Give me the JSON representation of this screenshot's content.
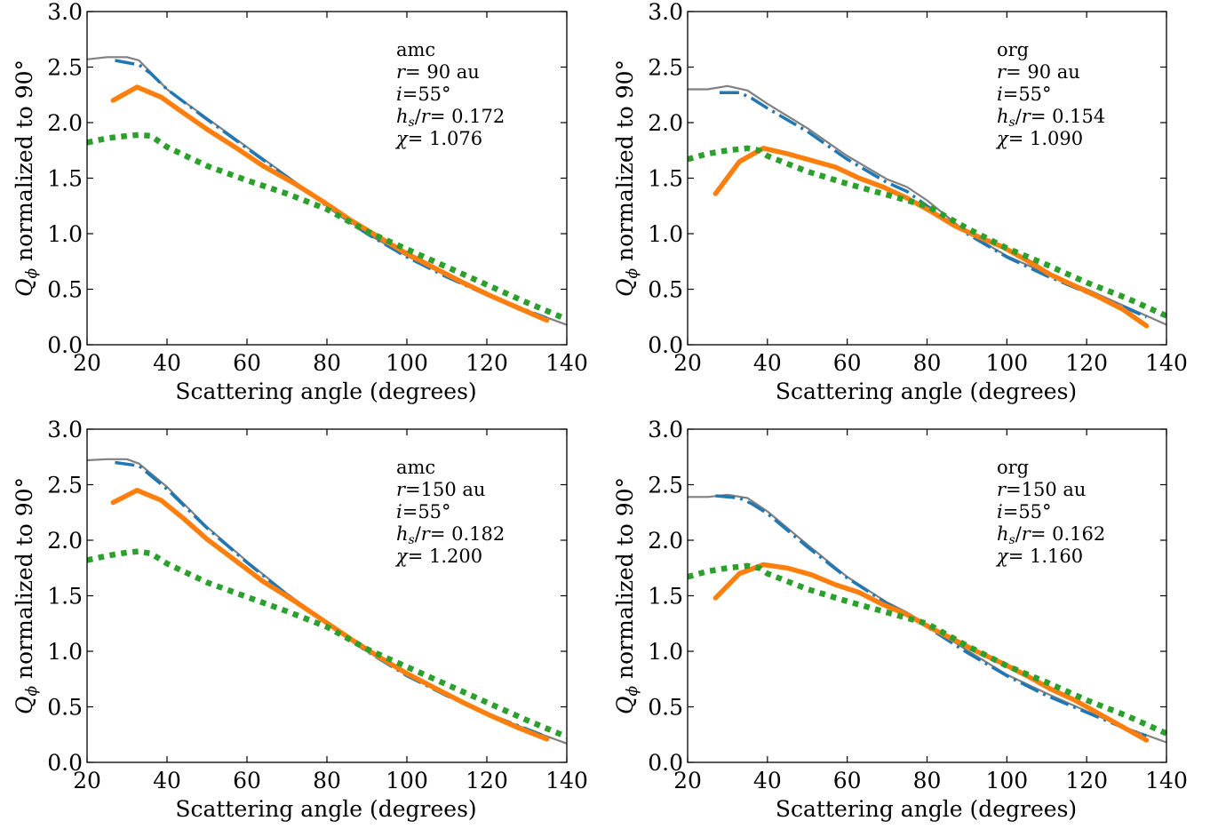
{
  "figure": {
    "xlabel": "Scattering angle (degrees)",
    "ylabel_symbol": "Q",
    "ylabel_subscript": "ϕ",
    "ylabel_rest": " normalized to 90°",
    "colors": {
      "gray": "#808080",
      "blue": "#1f77b4",
      "orange": "#ff7f0e",
      "green": "#2ca02c"
    }
  },
  "chart_data": [
    {
      "type": "line",
      "xlim": [
        20,
        140
      ],
      "ylim": [
        0,
        3
      ],
      "xticks": [
        "20",
        "40",
        "60",
        "80",
        "100",
        "120",
        "140"
      ],
      "yticks": [
        "0.0",
        "0.5",
        "1.0",
        "1.5",
        "2.0",
        "2.5",
        "3.0"
      ],
      "annotation": {
        "composition": "amc",
        "r_value": "90",
        "r_unit": "au",
        "i_value": "55°",
        "hs_value": "0.172",
        "chi_value": "1.076"
      },
      "series": [
        {
          "color": "gray",
          "style": "solid",
          "x": [
            20,
            25,
            30,
            33,
            36,
            40,
            50,
            60,
            70,
            80,
            90,
            100,
            110,
            120,
            130,
            140
          ],
          "y": [
            2.57,
            2.59,
            2.59,
            2.56,
            2.45,
            2.3,
            2.04,
            1.78,
            1.52,
            1.26,
            1.0,
            0.8,
            0.62,
            0.46,
            0.31,
            0.18
          ]
        },
        {
          "color": "blue",
          "style": "dashdot",
          "x": [
            27,
            33,
            36,
            40,
            50,
            60,
            70,
            80,
            90,
            100,
            110,
            120,
            130,
            135
          ],
          "y": [
            2.56,
            2.52,
            2.44,
            2.3,
            2.03,
            1.77,
            1.51,
            1.25,
            1.0,
            0.79,
            0.61,
            0.45,
            0.31,
            0.24
          ]
        },
        {
          "color": "orange",
          "style": "solid",
          "x": [
            26.5,
            32.5,
            38.5,
            44,
            50,
            57,
            64,
            72,
            79,
            86,
            93,
            100,
            107,
            114,
            121,
            128,
            135
          ],
          "y": [
            2.2,
            2.32,
            2.23,
            2.09,
            1.94,
            1.78,
            1.61,
            1.45,
            1.29,
            1.12,
            0.97,
            0.82,
            0.69,
            0.56,
            0.44,
            0.33,
            0.22
          ]
        },
        {
          "color": "green",
          "style": "dotted",
          "x": [
            20,
            25,
            30,
            33,
            36,
            40,
            50,
            60,
            70,
            80,
            90,
            100,
            110,
            120,
            130,
            140
          ],
          "y": [
            1.82,
            1.86,
            1.88,
            1.89,
            1.88,
            1.78,
            1.61,
            1.48,
            1.36,
            1.22,
            1.02,
            0.86,
            0.7,
            0.54,
            0.38,
            0.23
          ]
        }
      ]
    },
    {
      "type": "line",
      "xlim": [
        20,
        140
      ],
      "ylim": [
        0,
        3
      ],
      "xticks": [
        "20",
        "40",
        "60",
        "80",
        "100",
        "120",
        "140"
      ],
      "yticks": [
        "0.0",
        "0.5",
        "1.0",
        "1.5",
        "2.0",
        "2.5",
        "3.0"
      ],
      "annotation": {
        "composition": "org",
        "r_value": "90",
        "r_unit": "au",
        "i_value": "55°",
        "hs_value": "0.154",
        "chi_value": "1.090"
      },
      "series": [
        {
          "color": "gray",
          "style": "solid",
          "x": [
            20,
            25,
            30,
            35,
            40,
            50,
            60,
            70,
            75,
            80,
            90,
            100,
            110,
            120,
            130,
            140
          ],
          "y": [
            2.3,
            2.3,
            2.33,
            2.29,
            2.17,
            1.95,
            1.7,
            1.49,
            1.42,
            1.3,
            1.01,
            0.8,
            0.64,
            0.5,
            0.34,
            0.18
          ]
        },
        {
          "color": "blue",
          "style": "dashdot",
          "x": [
            28,
            33,
            36,
            40,
            50,
            60,
            70,
            75,
            80,
            90,
            100,
            110,
            120,
            130,
            135
          ],
          "y": [
            2.27,
            2.27,
            2.22,
            2.13,
            1.92,
            1.67,
            1.46,
            1.38,
            1.25,
            1.0,
            0.79,
            0.62,
            0.47,
            0.33,
            0.25
          ]
        },
        {
          "color": "orange",
          "style": "solid",
          "x": [
            27,
            33,
            39,
            45,
            51,
            57,
            63,
            69,
            75,
            81,
            87,
            93,
            99,
            105,
            111,
            117,
            123,
            129,
            135
          ],
          "y": [
            1.36,
            1.65,
            1.77,
            1.72,
            1.66,
            1.6,
            1.5,
            1.42,
            1.32,
            1.2,
            1.07,
            0.97,
            0.88,
            0.76,
            0.63,
            0.53,
            0.43,
            0.32,
            0.17
          ]
        },
        {
          "color": "green",
          "style": "dotted",
          "x": [
            20,
            25,
            30,
            35,
            38,
            40,
            50,
            60,
            70,
            80,
            90,
            100,
            110,
            120,
            130,
            140
          ],
          "y": [
            1.67,
            1.72,
            1.75,
            1.77,
            1.75,
            1.7,
            1.56,
            1.45,
            1.35,
            1.25,
            1.05,
            0.87,
            0.72,
            0.56,
            0.42,
            0.26
          ]
        }
      ]
    },
    {
      "type": "line",
      "xlim": [
        20,
        140
      ],
      "ylim": [
        0,
        3
      ],
      "xticks": [
        "20",
        "40",
        "60",
        "80",
        "100",
        "120",
        "140"
      ],
      "yticks": [
        "0.0",
        "0.5",
        "1.0",
        "1.5",
        "2.0",
        "2.5",
        "3.0"
      ],
      "annotation": {
        "composition": "amc",
        "r_value": "150",
        "r_unit": "au",
        "i_value": "55°",
        "hs_value": "0.182",
        "chi_value": "1.200"
      },
      "series": [
        {
          "color": "gray",
          "style": "solid",
          "x": [
            20,
            25,
            30,
            33,
            36,
            40,
            50,
            60,
            70,
            80,
            90,
            100,
            110,
            120,
            130,
            140
          ],
          "y": [
            2.72,
            2.73,
            2.73,
            2.69,
            2.6,
            2.48,
            2.12,
            1.81,
            1.52,
            1.26,
            1.0,
            0.79,
            0.6,
            0.44,
            0.3,
            0.17
          ]
        },
        {
          "color": "blue",
          "style": "dashdot",
          "x": [
            27,
            33,
            36,
            40,
            50,
            60,
            70,
            80,
            90,
            100,
            110,
            120,
            130,
            135
          ],
          "y": [
            2.7,
            2.67,
            2.58,
            2.46,
            2.11,
            1.8,
            1.51,
            1.25,
            1.0,
            0.78,
            0.6,
            0.44,
            0.3,
            0.23
          ]
        },
        {
          "color": "orange",
          "style": "solid",
          "x": [
            26.5,
            32.5,
            38.5,
            44,
            50,
            57,
            64,
            72,
            79,
            86,
            93,
            100,
            107,
            114,
            121,
            128,
            135
          ],
          "y": [
            2.34,
            2.45,
            2.36,
            2.2,
            2.01,
            1.82,
            1.63,
            1.45,
            1.28,
            1.11,
            0.95,
            0.8,
            0.67,
            0.54,
            0.42,
            0.31,
            0.21
          ]
        },
        {
          "color": "green",
          "style": "dotted",
          "x": [
            20,
            25,
            30,
            33,
            36,
            40,
            50,
            60,
            70,
            80,
            90,
            100,
            110,
            120,
            130,
            140
          ],
          "y": [
            1.82,
            1.86,
            1.89,
            1.9,
            1.88,
            1.79,
            1.62,
            1.49,
            1.36,
            1.22,
            1.02,
            0.86,
            0.7,
            0.54,
            0.38,
            0.23
          ]
        }
      ]
    },
    {
      "type": "line",
      "xlim": [
        20,
        140
      ],
      "ylim": [
        0,
        3
      ],
      "xticks": [
        "20",
        "40",
        "60",
        "80",
        "100",
        "120",
        "140"
      ],
      "yticks": [
        "0.0",
        "0.5",
        "1.0",
        "1.5",
        "2.0",
        "2.5",
        "3.0"
      ],
      "annotation": {
        "composition": "org",
        "r_value": "150",
        "r_unit": "au",
        "i_value": "55°",
        "hs_value": "0.162",
        "chi_value": "1.160"
      },
      "series": [
        {
          "color": "gray",
          "style": "solid",
          "x": [
            20,
            25,
            30,
            35,
            40,
            50,
            60,
            70,
            75,
            80,
            90,
            100,
            110,
            120,
            130,
            140
          ],
          "y": [
            2.39,
            2.39,
            2.41,
            2.38,
            2.26,
            1.96,
            1.67,
            1.44,
            1.35,
            1.24,
            1.01,
            0.79,
            0.62,
            0.46,
            0.31,
            0.18
          ]
        },
        {
          "color": "blue",
          "style": "dashdot",
          "x": [
            27,
            33,
            36,
            40,
            50,
            60,
            70,
            75,
            80,
            90,
            100,
            110,
            120,
            130,
            135
          ],
          "y": [
            2.4,
            2.38,
            2.33,
            2.24,
            1.94,
            1.66,
            1.43,
            1.33,
            1.22,
            0.99,
            0.78,
            0.6,
            0.45,
            0.3,
            0.24
          ]
        },
        {
          "color": "orange",
          "style": "solid",
          "x": [
            27,
            33,
            39,
            45,
            51,
            57,
            63,
            69,
            75,
            81,
            87,
            93,
            99,
            105,
            111,
            117,
            123,
            129,
            135
          ],
          "y": [
            1.48,
            1.7,
            1.78,
            1.75,
            1.69,
            1.6,
            1.53,
            1.42,
            1.33,
            1.21,
            1.1,
            0.99,
            0.89,
            0.78,
            0.66,
            0.56,
            0.44,
            0.32,
            0.2
          ]
        },
        {
          "color": "green",
          "style": "dotted",
          "x": [
            20,
            25,
            30,
            35,
            38,
            40,
            50,
            60,
            70,
            80,
            90,
            100,
            110,
            120,
            130,
            140
          ],
          "y": [
            1.67,
            1.72,
            1.75,
            1.77,
            1.75,
            1.7,
            1.56,
            1.45,
            1.35,
            1.25,
            1.05,
            0.87,
            0.72,
            0.56,
            0.42,
            0.26
          ]
        }
      ]
    }
  ]
}
